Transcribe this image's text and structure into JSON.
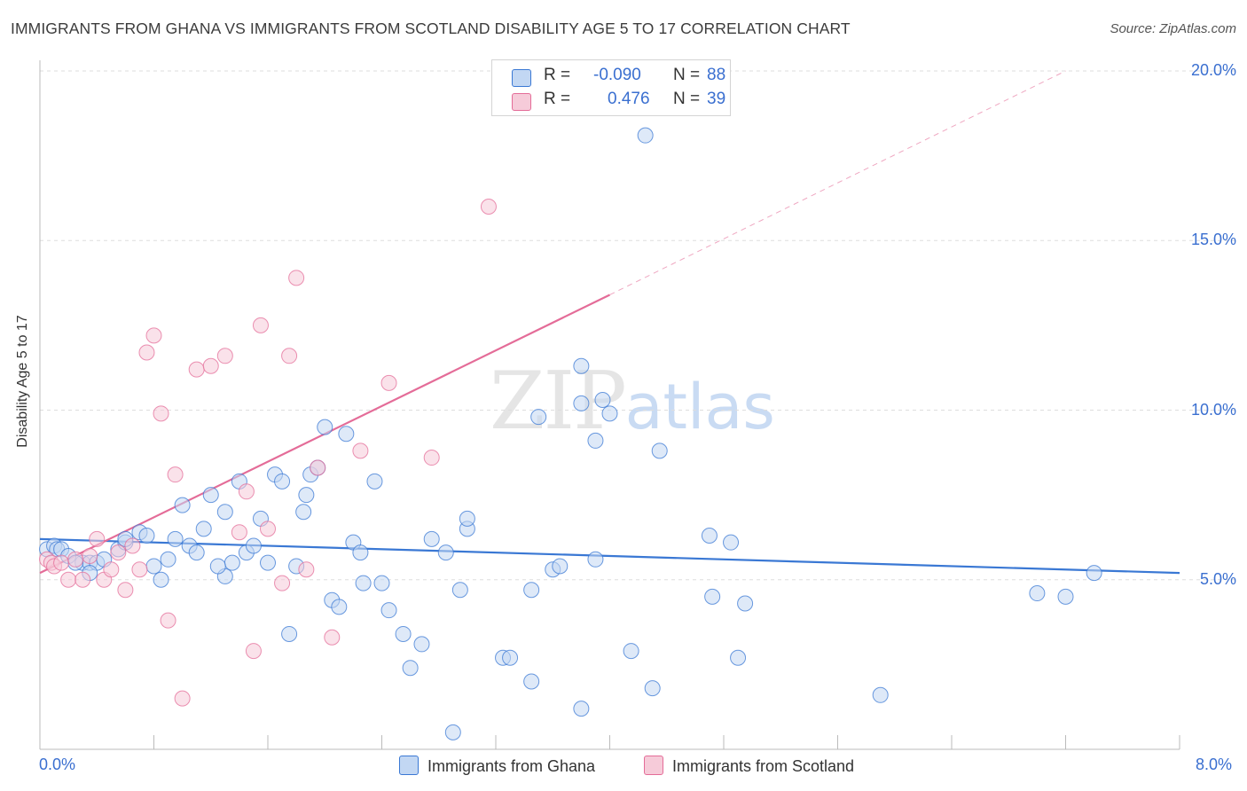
{
  "title": "IMMIGRANTS FROM GHANA VS IMMIGRANTS FROM SCOTLAND DISABILITY AGE 5 TO 17 CORRELATION CHART",
  "source": "Source: ZipAtlas.com",
  "watermark": {
    "part1": "ZIP",
    "part2": "atlas"
  },
  "colors": {
    "ghana": "#3a78d4",
    "ghana_fill": "#c2d7f3",
    "scotland": "#e46c98",
    "scotland_fill": "#f6cbd9",
    "tick_label": "#3a6fd0",
    "grid": "#dddddd"
  },
  "legend": {
    "rows": [
      {
        "r_label": "R =",
        "r_value": "-0.090",
        "n_label": "N =",
        "n_value": "88"
      },
      {
        "r_label": "R =",
        "r_value": "0.476",
        "n_label": "N =",
        "n_value": "39"
      }
    ]
  },
  "chart_data": {
    "type": "scatter",
    "title": "IMMIGRANTS FROM GHANA VS IMMIGRANTS FROM SCOTLAND DISABILITY AGE 5 TO 17 CORRELATION CHART",
    "xlabel": "",
    "ylabel": "Disability Age 5 to 17",
    "xlim": [
      0,
      8
    ],
    "ylim": [
      0,
      20
    ],
    "x_tick_labels": [
      "0.0%",
      "8.0%"
    ],
    "y_ticks": [
      5,
      10,
      15,
      20
    ],
    "y_tick_labels": [
      "5.0%",
      "10.0%",
      "15.0%",
      "20.0%"
    ],
    "grid": true,
    "legend_position": "bottom",
    "series": [
      {
        "name": "Immigrants from Ghana",
        "r": -0.09,
        "n": 88,
        "trend": {
          "x": [
            0,
            8
          ],
          "y": [
            6.2,
            5.2
          ]
        },
        "points": [
          [
            0.05,
            5.9
          ],
          [
            0.1,
            6.0
          ],
          [
            0.12,
            5.9
          ],
          [
            0.15,
            5.9
          ],
          [
            0.2,
            5.7
          ],
          [
            0.3,
            5.5
          ],
          [
            0.35,
            5.5
          ],
          [
            0.4,
            5.5
          ],
          [
            0.45,
            5.6
          ],
          [
            0.35,
            5.2
          ],
          [
            0.55,
            5.9
          ],
          [
            0.6,
            6.1
          ],
          [
            0.6,
            6.2
          ],
          [
            0.7,
            6.4
          ],
          [
            0.75,
            6.3
          ],
          [
            0.8,
            5.4
          ],
          [
            0.85,
            5.0
          ],
          [
            0.9,
            5.6
          ],
          [
            0.95,
            6.2
          ],
          [
            1.0,
            7.2
          ],
          [
            1.05,
            6.0
          ],
          [
            1.1,
            5.8
          ],
          [
            1.15,
            6.5
          ],
          [
            1.2,
            7.5
          ],
          [
            1.3,
            7.0
          ],
          [
            1.3,
            5.1
          ],
          [
            1.35,
            5.5
          ],
          [
            1.4,
            7.9
          ],
          [
            1.45,
            5.8
          ],
          [
            1.5,
            6.0
          ],
          [
            1.55,
            6.8
          ],
          [
            1.6,
            5.5
          ],
          [
            1.65,
            8.1
          ],
          [
            1.7,
            7.9
          ],
          [
            1.75,
            3.4
          ],
          [
            1.8,
            5.4
          ],
          [
            1.85,
            7.0
          ],
          [
            1.87,
            7.5
          ],
          [
            1.9,
            8.1
          ],
          [
            1.95,
            8.3
          ],
          [
            2.0,
            9.5
          ],
          [
            2.05,
            4.4
          ],
          [
            2.1,
            4.2
          ],
          [
            2.15,
            9.3
          ],
          [
            2.2,
            6.1
          ],
          [
            2.25,
            5.8
          ],
          [
            2.27,
            4.9
          ],
          [
            2.35,
            7.9
          ],
          [
            2.4,
            4.9
          ],
          [
            2.45,
            4.1
          ],
          [
            2.55,
            3.4
          ],
          [
            2.6,
            2.4
          ],
          [
            2.68,
            3.1
          ],
          [
            2.75,
            6.2
          ],
          [
            2.85,
            5.8
          ],
          [
            2.9,
            0.5
          ],
          [
            2.95,
            4.7
          ],
          [
            3.0,
            6.5
          ],
          [
            3.0,
            6.8
          ],
          [
            3.25,
            2.7
          ],
          [
            3.3,
            2.7
          ],
          [
            3.45,
            4.7
          ],
          [
            3.45,
            2.0
          ],
          [
            3.6,
            5.3
          ],
          [
            3.65,
            5.4
          ],
          [
            3.8,
            1.2
          ],
          [
            3.8,
            10.2
          ],
          [
            3.8,
            11.3
          ],
          [
            3.9,
            9.1
          ],
          [
            3.9,
            5.6
          ],
          [
            3.95,
            10.3
          ],
          [
            4.0,
            9.9
          ],
          [
            4.15,
            2.9
          ],
          [
            4.25,
            18.1
          ],
          [
            4.3,
            1.8
          ],
          [
            4.35,
            8.8
          ],
          [
            4.7,
            6.3
          ],
          [
            4.72,
            4.5
          ],
          [
            4.85,
            6.1
          ],
          [
            4.9,
            2.7
          ],
          [
            4.95,
            4.3
          ],
          [
            5.9,
            1.6
          ],
          [
            7.0,
            4.6
          ],
          [
            7.2,
            4.5
          ],
          [
            7.4,
            5.2
          ],
          [
            3.5,
            9.8
          ],
          [
            1.25,
            5.4
          ],
          [
            0.25,
            5.5
          ]
        ]
      },
      {
        "name": "Immigrants from Scotland",
        "r": 0.476,
        "n": 39,
        "trend": {
          "x": [
            0,
            4.0
          ],
          "y": [
            5.2,
            13.4
          ]
        },
        "trend_dashed": {
          "x": [
            4.0,
            7.2
          ],
          "y": [
            13.4,
            20.0
          ]
        },
        "points": [
          [
            0.05,
            5.6
          ],
          [
            0.08,
            5.5
          ],
          [
            0.1,
            5.4
          ],
          [
            0.15,
            5.5
          ],
          [
            0.2,
            5.0
          ],
          [
            0.25,
            5.6
          ],
          [
            0.3,
            5.0
          ],
          [
            0.35,
            5.7
          ],
          [
            0.4,
            6.2
          ],
          [
            0.45,
            5.0
          ],
          [
            0.5,
            5.3
          ],
          [
            0.55,
            5.8
          ],
          [
            0.6,
            4.7
          ],
          [
            0.65,
            6.0
          ],
          [
            0.7,
            5.3
          ],
          [
            0.75,
            11.7
          ],
          [
            0.8,
            12.2
          ],
          [
            0.85,
            9.9
          ],
          [
            0.9,
            3.8
          ],
          [
            0.95,
            8.1
          ],
          [
            1.0,
            1.5
          ],
          [
            1.1,
            11.2
          ],
          [
            1.2,
            11.3
          ],
          [
            1.3,
            11.6
          ],
          [
            1.4,
            6.4
          ],
          [
            1.45,
            7.6
          ],
          [
            1.5,
            2.9
          ],
          [
            1.55,
            12.5
          ],
          [
            1.6,
            6.5
          ],
          [
            1.7,
            4.9
          ],
          [
            1.75,
            11.6
          ],
          [
            1.8,
            13.9
          ],
          [
            1.87,
            5.3
          ],
          [
            1.95,
            8.3
          ],
          [
            2.05,
            3.3
          ],
          [
            2.25,
            8.8
          ],
          [
            2.45,
            10.8
          ],
          [
            2.75,
            8.6
          ],
          [
            3.15,
            16.0
          ]
        ]
      }
    ]
  },
  "bottom_legend": {
    "ghana_label": "Immigrants from Ghana",
    "scotland_label": "Immigrants from Scotland"
  }
}
